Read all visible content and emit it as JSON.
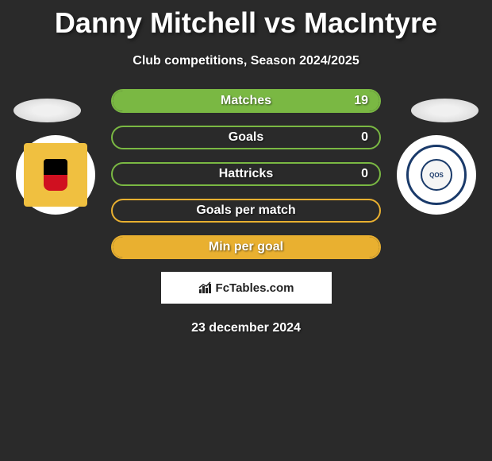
{
  "title": "Danny Mitchell vs MacIntyre",
  "subtitle": "Club competitions, Season 2024/2025",
  "stats": [
    {
      "label": "Matches",
      "value_right": "19",
      "border_color": "#7ab843",
      "fill_color": "#7ab843",
      "fill_side": "right",
      "fill_width_pct": 100
    },
    {
      "label": "Goals",
      "value_right": "0",
      "border_color": "#7ab843",
      "fill_color": "#7ab843",
      "fill_side": "center",
      "fill_width_pct": 0
    },
    {
      "label": "Hattricks",
      "value_right": "0",
      "border_color": "#7ab843",
      "fill_color": "#7ab843",
      "fill_side": "center",
      "fill_width_pct": 0
    },
    {
      "label": "Goals per match",
      "value_right": "",
      "border_color": "#e9b030",
      "fill_color": "#e9b030",
      "fill_side": "center",
      "fill_width_pct": 0
    },
    {
      "label": "Min per goal",
      "value_right": "",
      "border_color": "#e9b030",
      "fill_color": "#e9b030",
      "fill_side": "center",
      "fill_width_pct": 100
    }
  ],
  "attribution": {
    "text": "FcTables.com"
  },
  "date": "23 december 2024",
  "badges": {
    "left": {
      "name": "Annan Athletic",
      "bg_color": "#ffffff",
      "inner_color": "#f0c040"
    },
    "right": {
      "name": "Queen of the South",
      "bg_color": "#ffffff",
      "border_color": "#1a3a6a",
      "text": "QOS"
    }
  },
  "colors": {
    "background": "#2a2a2a",
    "text": "#ffffff"
  }
}
